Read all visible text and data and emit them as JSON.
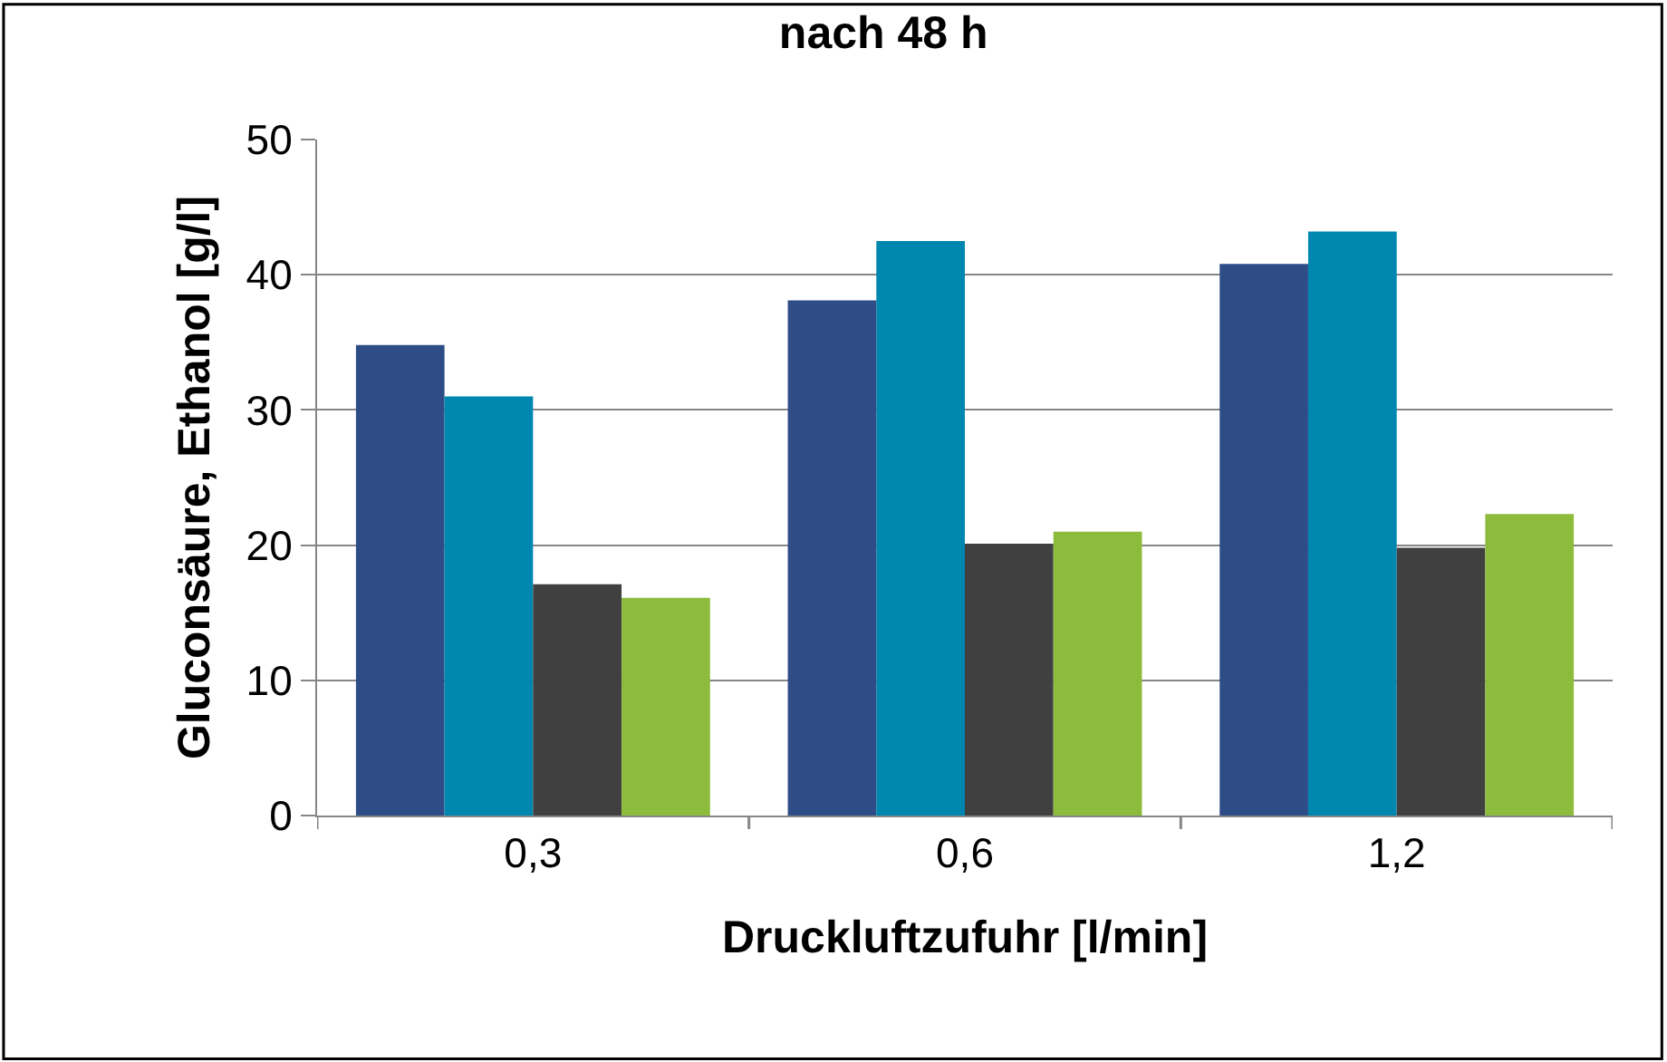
{
  "chart_data": {
    "type": "bar",
    "title": "nach 48 h",
    "xlabel": "Druckluftzufuhr [l/min]",
    "ylabel": "Gluconsäure, Ethanol [g/l]",
    "categories": [
      "0,3",
      "0,6",
      "1,2"
    ],
    "series": [
      {
        "color": "#2e4d87",
        "values": [
          34.8,
          38.1,
          40.8
        ]
      },
      {
        "color": "#0087b0",
        "values": [
          31.0,
          42.5,
          43.2
        ]
      },
      {
        "color": "#404040",
        "values": [
          17.1,
          20.1,
          19.8
        ]
      },
      {
        "color": "#8dbb3c",
        "values": [
          16.1,
          21.0,
          22.3
        ]
      }
    ],
    "ylim": [
      0,
      50
    ],
    "yticks": [
      0,
      10,
      20,
      30,
      40,
      50
    ],
    "grid": "y"
  }
}
